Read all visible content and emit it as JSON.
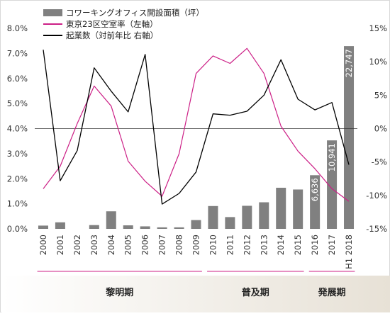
{
  "chart_data": {
    "type": "bar",
    "categories": [
      "2000",
      "2001",
      "2002",
      "2003",
      "2004",
      "2005",
      "2006",
      "2007",
      "2008",
      "2009",
      "2010",
      "2011",
      "2012",
      "2013",
      "2014",
      "2015",
      "2016",
      "2017",
      "H1 2018"
    ],
    "left_axis": {
      "ticks": [
        "0.0%",
        "1.0%",
        "2.0%",
        "3.0%",
        "4.0%",
        "5.0%",
        "6.0%",
        "7.0%",
        "8.0%"
      ],
      "ylim": [
        0,
        8
      ]
    },
    "right_axis": {
      "ticks": [
        "15%",
        "10%",
        "5%",
        "0%",
        "-5%",
        "-10%",
        "-15%"
      ],
      "ylim": [
        -15,
        15
      ]
    },
    "series": [
      {
        "name": "コワーキングオフィス開設面積（坪）",
        "type": "bar",
        "color": "#808080",
        "axis": "left",
        "values": [
          0.13,
          0.26,
          0.0,
          0.15,
          0.7,
          0.14,
          0.1,
          0.06,
          0.06,
          0.35,
          0.91,
          0.47,
          0.92,
          1.06,
          1.64,
          1.57,
          2.14,
          3.53,
          7.29
        ],
        "data_labels": [
          "",
          "",
          "",
          "",
          "",
          "",
          "",
          "",
          "",
          "",
          "",
          "",
          "",
          "",
          "",
          "",
          "6,636",
          "10,941",
          "22,747"
        ]
      },
      {
        "name": "東京23区空室率（左軸）",
        "type": "line",
        "color": "#cc1f86",
        "axis": "left",
        "values": [
          1.6,
          2.5,
          4.2,
          5.7,
          4.9,
          2.7,
          1.9,
          1.3,
          3.0,
          6.2,
          6.9,
          6.6,
          7.2,
          6.2,
          4.1,
          3.1,
          2.4,
          1.6,
          1.1
        ]
      },
      {
        "name": "起業数（対前年比 右軸）",
        "type": "line",
        "color": "#000000",
        "axis": "right",
        "values": [
          11.8,
          -7.8,
          -3.3,
          9.1,
          5.6,
          2.5,
          11.1,
          -11.3,
          -9.7,
          -6.5,
          2.2,
          2.0,
          2.6,
          5.0,
          10.3,
          4.4,
          2.8,
          3.9,
          -5.4
        ]
      }
    ],
    "reference_line": {
      "axis": "right",
      "value": 0
    },
    "periods": [
      {
        "label": "黎明期",
        "start": "2000",
        "end": "2009"
      },
      {
        "label": "普及期",
        "start": "2010",
        "end": "2015"
      },
      {
        "label": "発展期",
        "start": "2016",
        "end": "H1 2018"
      }
    ],
    "legend_position": "top-left"
  }
}
